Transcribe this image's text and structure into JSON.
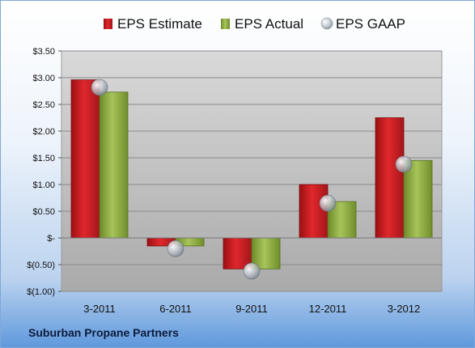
{
  "chart_data": {
    "type": "bar",
    "categories": [
      "3-2011",
      "6-2011",
      "9-2011",
      "12-2011",
      "3-2012"
    ],
    "series": [
      {
        "name": "EPS Estimate",
        "values": [
          2.96,
          -0.15,
          -0.58,
          1.0,
          2.25
        ],
        "color": "#c0171c"
      },
      {
        "name": "EPS Actual",
        "values": [
          2.73,
          -0.15,
          -0.58,
          0.68,
          1.45
        ],
        "color": "#8cab3c"
      },
      {
        "name": "EPS GAAP",
        "values": [
          2.82,
          -0.2,
          -0.62,
          0.65,
          1.38
        ],
        "color": "#b9c2cc",
        "marker": "sphere"
      }
    ],
    "ylim": [
      -1.0,
      3.5
    ],
    "yticks": [
      3.5,
      3.0,
      2.5,
      2.0,
      1.5,
      1.0,
      0.5,
      0,
      -0.5,
      -1.0
    ],
    "ytick_labels": [
      "$3.50",
      "$3.00",
      "$2.50",
      "$2.00",
      "$1.50",
      "$1.00",
      "$0.50",
      "$-",
      "$(0.50)",
      "$(1.00)"
    ],
    "grid": true,
    "legend": "top",
    "plot_background": "#c8c8c8"
  },
  "footer": {
    "company": "Suburban Propane Partners"
  }
}
